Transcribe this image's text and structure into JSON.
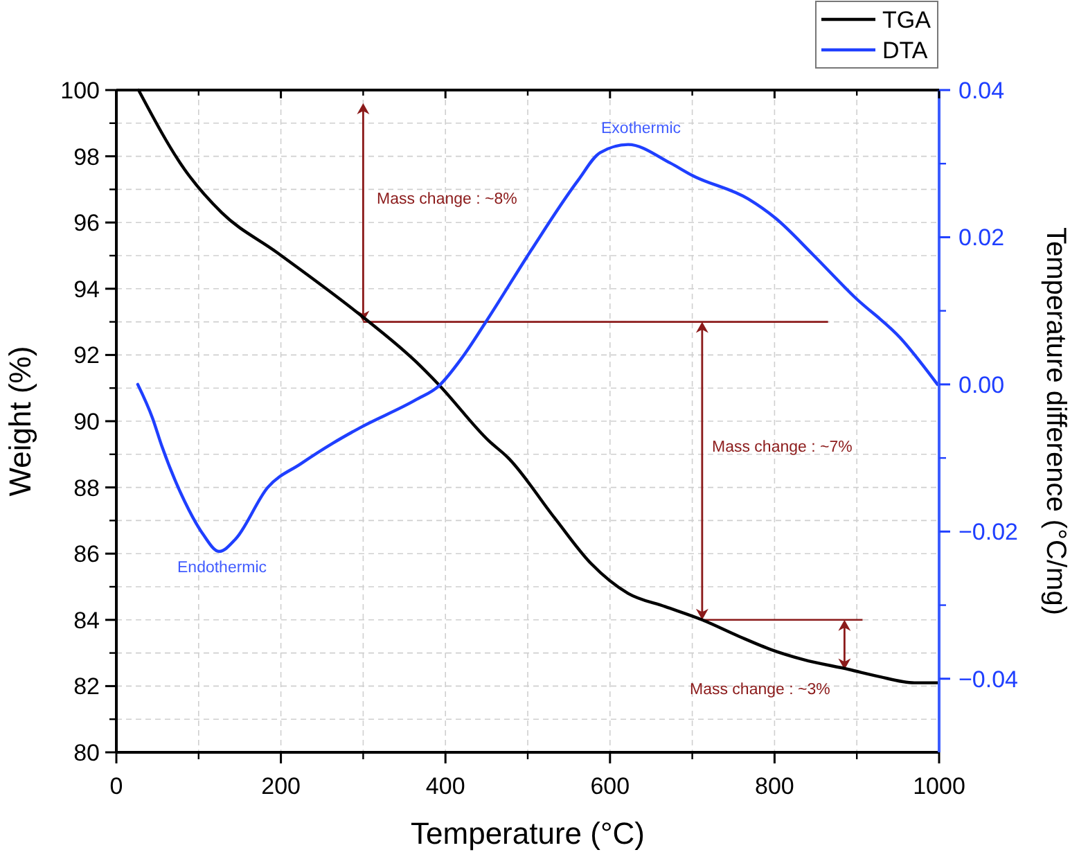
{
  "chart_data": {
    "type": "line",
    "xlabel": "Temperature (°C)",
    "ylabel": "Weight (%)",
    "y2label": "Temperature difference (°C/mg)",
    "xlim": [
      0,
      1000
    ],
    "xticks": [
      0,
      200,
      400,
      600,
      800,
      1000
    ],
    "ylim": [
      80,
      100
    ],
    "yticks": [
      80,
      82,
      84,
      86,
      88,
      90,
      92,
      94,
      96,
      98,
      100
    ],
    "y2lim": [
      -0.05,
      0.04
    ],
    "y2ticks": [
      {
        "value": -0.04,
        "label": "−0.04"
      },
      {
        "value": -0.02,
        "label": "−0.02"
      },
      {
        "value": 0,
        "label": "0.00"
      },
      {
        "value": 0.02,
        "label": "0.02"
      },
      {
        "value": 0.04,
        "label": "0.04"
      }
    ],
    "grid": true,
    "legend": "top right",
    "line_style": "solid",
    "marker": "none",
    "series": [
      {
        "name": "TGA",
        "color": "#000000",
        "x": [
          27,
          83,
          128,
          195,
          302,
          364,
          392,
          453,
          476,
          532,
          577,
          622,
          667,
          712,
          757,
          796,
          835,
          891,
          925,
          970,
          998
        ],
        "values": [
          100,
          97.6,
          96.3,
          95.1,
          93.1,
          91.8,
          91.1,
          89.4,
          88.9,
          87.1,
          85.7,
          84.8,
          84.4,
          84.0,
          83.5,
          83.1,
          82.8,
          82.5,
          82.3,
          82.1,
          82.1
        ]
      },
      {
        "name": "DTA",
        "color": "#1f3fff",
        "axis": "y2",
        "x": [
          26,
          44,
          55,
          83,
          105,
          125,
          145,
          184,
          224,
          263,
          296,
          364,
          392,
          420,
          448,
          504,
          561,
          588,
          622,
          673,
          700,
          768,
          801,
          847,
          897,
          953,
          998
        ],
        "values": [
          0.0,
          -0.0046,
          -0.0083,
          -0.0159,
          -0.0203,
          -0.0227,
          -0.021,
          -0.014,
          -0.0108,
          -0.008,
          -0.0059,
          -0.0021,
          -0.0002,
          0.0036,
          0.0083,
          0.0182,
          0.0277,
          0.0315,
          0.0326,
          0.0301,
          0.0284,
          0.0252,
          0.0226,
          0.0176,
          0.0119,
          0.0063,
          0.0
        ]
      }
    ],
    "ref_lines": [
      {
        "axis": "y",
        "value": 93,
        "color": "#8b1a1a"
      },
      {
        "axis": "y",
        "value": 84,
        "color": "#8b1a1a"
      }
    ],
    "annotations": [
      "Exothermic",
      "Endothermic",
      "Mass change : ~8%",
      "Mass change : ~7%",
      "Mass change : ~3%"
    ]
  }
}
